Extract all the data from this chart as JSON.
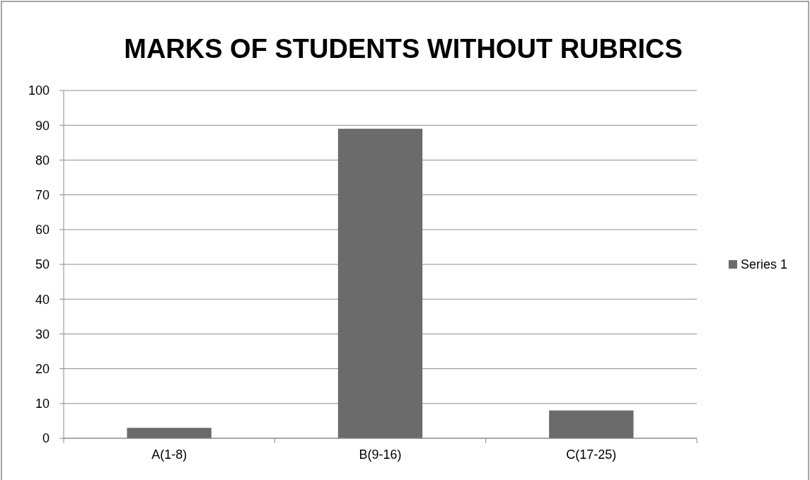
{
  "chart_data": {
    "type": "bar",
    "title": "MARKS OF STUDENTS WITHOUT RUBRICS",
    "categories": [
      "A(1-8)",
      "B(9-16)",
      "C(17-25)"
    ],
    "series": [
      {
        "name": "Series 1",
        "color": "#6b6b6b",
        "values": [
          3,
          89,
          8
        ]
      }
    ],
    "ylim": [
      0,
      100
    ],
    "yticks": [
      0,
      10,
      20,
      30,
      40,
      50,
      60,
      70,
      80,
      90,
      100
    ],
    "grid": "y",
    "legend": "right"
  }
}
